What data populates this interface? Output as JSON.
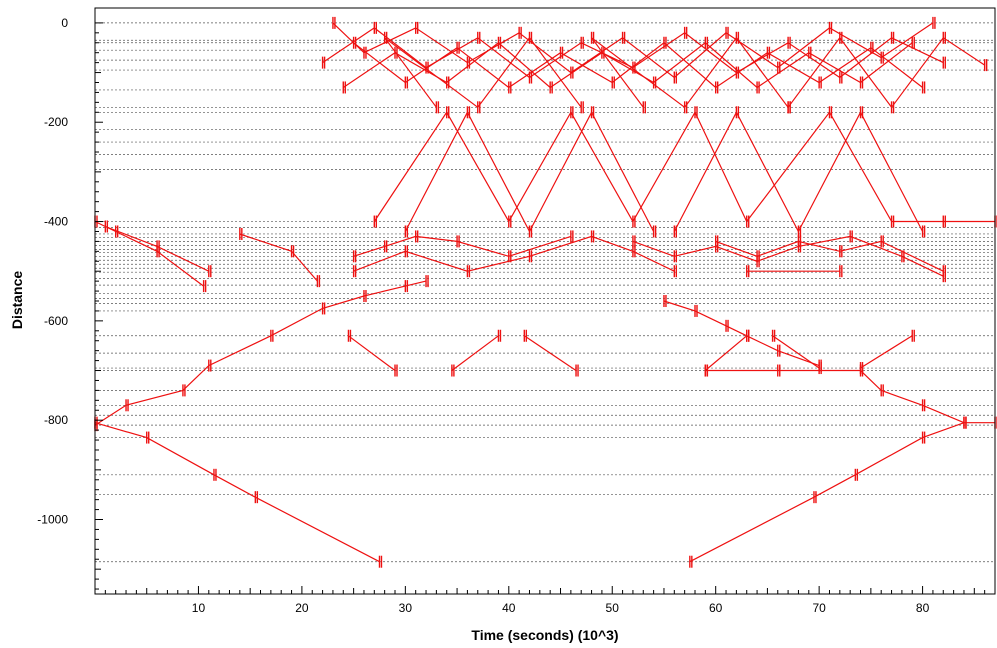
{
  "chart_data": {
    "type": "line",
    "title": "",
    "xlabel": "Time (seconds) (10^3)",
    "ylabel": "Distance",
    "xlim": [
      0,
      87
    ],
    "ylim": [
      -1150,
      30
    ],
    "xticks": [
      10,
      20,
      30,
      40,
      50,
      60,
      70,
      80
    ],
    "xtick_labels": [
      "10",
      "20",
      "30",
      "40",
      "50",
      "60",
      "70",
      "80"
    ],
    "yticks": [
      0,
      -200,
      -400,
      -600,
      -800,
      -1000
    ],
    "ytick_labels": [
      "0",
      "-200",
      "-400",
      "-600",
      "-800",
      "-1000"
    ],
    "grid": "horizontal dashed lines at station distances",
    "line_color": "#ee1111",
    "stations": [
      0,
      -35,
      -40,
      -55,
      -75,
      -95,
      -135,
      -170,
      -180,
      -215,
      -240,
      -265,
      -295,
      -400,
      -412,
      -425,
      -432,
      -440,
      -448,
      -456,
      -462,
      -470,
      -478,
      -486,
      -494,
      -502,
      -515,
      -528,
      -545,
      -555,
      -565,
      -580,
      -630,
      -665,
      -695,
      -700,
      -740,
      -770,
      -790,
      -810,
      -835,
      -910,
      -950,
      -1085
    ],
    "series": [
      {
        "points": [
          [
            0,
            -400
          ],
          [
            2,
            -420
          ],
          [
            6,
            -460
          ],
          [
            10.5,
            -530
          ]
        ]
      },
      {
        "points": [
          [
            1,
            -410
          ],
          [
            6,
            -450
          ],
          [
            11,
            -500
          ]
        ]
      },
      {
        "points": [
          [
            14,
            -425
          ],
          [
            19,
            -460
          ],
          [
            21.5,
            -520
          ]
        ]
      },
      {
        "points": [
          [
            0,
            -810
          ],
          [
            3,
            -770
          ],
          [
            8.5,
            -740
          ],
          [
            11,
            -690
          ],
          [
            17,
            -630
          ],
          [
            22,
            -575
          ],
          [
            26,
            -550
          ],
          [
            30,
            -530
          ],
          [
            32,
            -520
          ]
        ]
      },
      {
        "points": [
          [
            0,
            -805
          ],
          [
            5,
            -835
          ],
          [
            11.5,
            -910
          ],
          [
            15.5,
            -955
          ],
          [
            27.5,
            -1085
          ]
        ]
      },
      {
        "points": [
          [
            57.5,
            -1085
          ],
          [
            69.5,
            -955
          ],
          [
            73.5,
            -910
          ],
          [
            80,
            -835
          ],
          [
            84,
            -805
          ],
          [
            87,
            -805
          ]
        ]
      },
      {
        "points": [
          [
            59,
            -700
          ],
          [
            66,
            -700
          ],
          [
            74,
            -700
          ],
          [
            76,
            -740
          ],
          [
            80,
            -770
          ],
          [
            84,
            -805
          ]
        ]
      },
      {
        "points": [
          [
            55,
            -560
          ],
          [
            58,
            -580
          ],
          [
            61,
            -610
          ],
          [
            63,
            -630
          ],
          [
            66,
            -660
          ],
          [
            70,
            -690
          ]
        ]
      },
      {
        "points": [
          [
            25,
            -470
          ],
          [
            28,
            -450
          ],
          [
            31,
            -430
          ],
          [
            35,
            -440
          ],
          [
            40,
            -470
          ],
          [
            46,
            -430
          ]
        ]
      },
      {
        "points": [
          [
            25,
            -500
          ],
          [
            30,
            -460
          ],
          [
            36,
            -500
          ],
          [
            42,
            -470
          ],
          [
            48,
            -430
          ],
          [
            52,
            -460
          ],
          [
            56,
            -500
          ]
        ]
      },
      {
        "points": [
          [
            52,
            -440
          ],
          [
            56,
            -470
          ],
          [
            60,
            -450
          ],
          [
            64,
            -480
          ],
          [
            68,
            -450
          ],
          [
            73,
            -430
          ],
          [
            78,
            -470
          ],
          [
            82,
            -510
          ]
        ]
      },
      {
        "points": [
          [
            60,
            -440
          ],
          [
            64,
            -470
          ],
          [
            68,
            -440
          ],
          [
            72,
            -460
          ],
          [
            76,
            -440
          ],
          [
            82,
            -500
          ]
        ]
      },
      {
        "points": [
          [
            63,
            -500
          ],
          [
            72,
            -500
          ]
        ]
      },
      {
        "points": [
          [
            24.5,
            -630
          ],
          [
            29,
            -700
          ]
        ]
      },
      {
        "points": [
          [
            34.5,
            -700
          ],
          [
            39,
            -630
          ]
        ]
      },
      {
        "points": [
          [
            41.5,
            -630
          ],
          [
            46.5,
            -700
          ]
        ]
      },
      {
        "points": [
          [
            59,
            -700
          ],
          [
            63,
            -630
          ]
        ]
      },
      {
        "points": [
          [
            65.5,
            -630
          ],
          [
            70,
            -695
          ]
        ]
      },
      {
        "points": [
          [
            74,
            -695
          ],
          [
            79,
            -630
          ]
        ]
      },
      {
        "points": [
          [
            27,
            -400
          ],
          [
            34,
            -180
          ],
          [
            40,
            -400
          ],
          [
            46,
            -180
          ],
          [
            52,
            -400
          ],
          [
            58,
            -180
          ],
          [
            63,
            -400
          ],
          [
            71,
            -180
          ],
          [
            77,
            -400
          ],
          [
            82,
            -400
          ],
          [
            87,
            -400
          ]
        ]
      },
      {
        "points": [
          [
            30,
            -420
          ],
          [
            36,
            -180
          ],
          [
            42,
            -420
          ],
          [
            48,
            -180
          ],
          [
            54,
            -420
          ]
        ]
      },
      {
        "points": [
          [
            56,
            -420
          ],
          [
            62,
            -180
          ],
          [
            68,
            -420
          ],
          [
            74,
            -180
          ],
          [
            80,
            -420
          ]
        ]
      },
      {
        "points": [
          [
            33,
            -170
          ],
          [
            28,
            -30
          ],
          [
            37,
            -170
          ],
          [
            42,
            -30
          ],
          [
            47,
            -170
          ]
        ]
      },
      {
        "points": [
          [
            53,
            -170
          ],
          [
            48,
            -30
          ],
          [
            57,
            -170
          ],
          [
            62,
            -30
          ],
          [
            67,
            -170
          ]
        ]
      },
      {
        "points": [
          [
            67,
            -170
          ],
          [
            72,
            -30
          ],
          [
            77,
            -170
          ],
          [
            82,
            -30
          ],
          [
            86,
            -85
          ]
        ]
      },
      {
        "points": [
          [
            23,
            0
          ],
          [
            26,
            -60
          ],
          [
            31,
            -10
          ],
          [
            36,
            -80
          ],
          [
            41,
            -20
          ],
          [
            46,
            -100
          ],
          [
            51,
            -30
          ],
          [
            56,
            -110
          ],
          [
            61,
            -20
          ],
          [
            66,
            -90
          ],
          [
            71,
            -10
          ],
          [
            76,
            -70
          ],
          [
            81,
            0
          ]
        ]
      },
      {
        "points": [
          [
            22,
            -80
          ],
          [
            27,
            -10
          ],
          [
            32,
            -90
          ],
          [
            37,
            -30
          ],
          [
            42,
            -110
          ],
          [
            47,
            -40
          ],
          [
            52,
            -90
          ],
          [
            57,
            -20
          ],
          [
            62,
            -100
          ],
          [
            67,
            -40
          ],
          [
            72,
            -110
          ],
          [
            77,
            -30
          ],
          [
            82,
            -80
          ]
        ]
      },
      {
        "points": [
          [
            25,
            -40
          ],
          [
            30,
            -120
          ],
          [
            35,
            -50
          ],
          [
            40,
            -130
          ],
          [
            45,
            -60
          ],
          [
            50,
            -120
          ],
          [
            55,
            -40
          ],
          [
            60,
            -130
          ],
          [
            65,
            -60
          ],
          [
            70,
            -120
          ],
          [
            75,
            -50
          ],
          [
            80,
            -130
          ]
        ]
      },
      {
        "points": [
          [
            24,
            -130
          ],
          [
            29,
            -60
          ],
          [
            34,
            -120
          ],
          [
            39,
            -40
          ],
          [
            44,
            -130
          ],
          [
            49,
            -60
          ],
          [
            54,
            -120
          ],
          [
            59,
            -40
          ],
          [
            64,
            -130
          ],
          [
            69,
            -60
          ],
          [
            74,
            -120
          ],
          [
            79,
            -40
          ]
        ]
      }
    ]
  }
}
